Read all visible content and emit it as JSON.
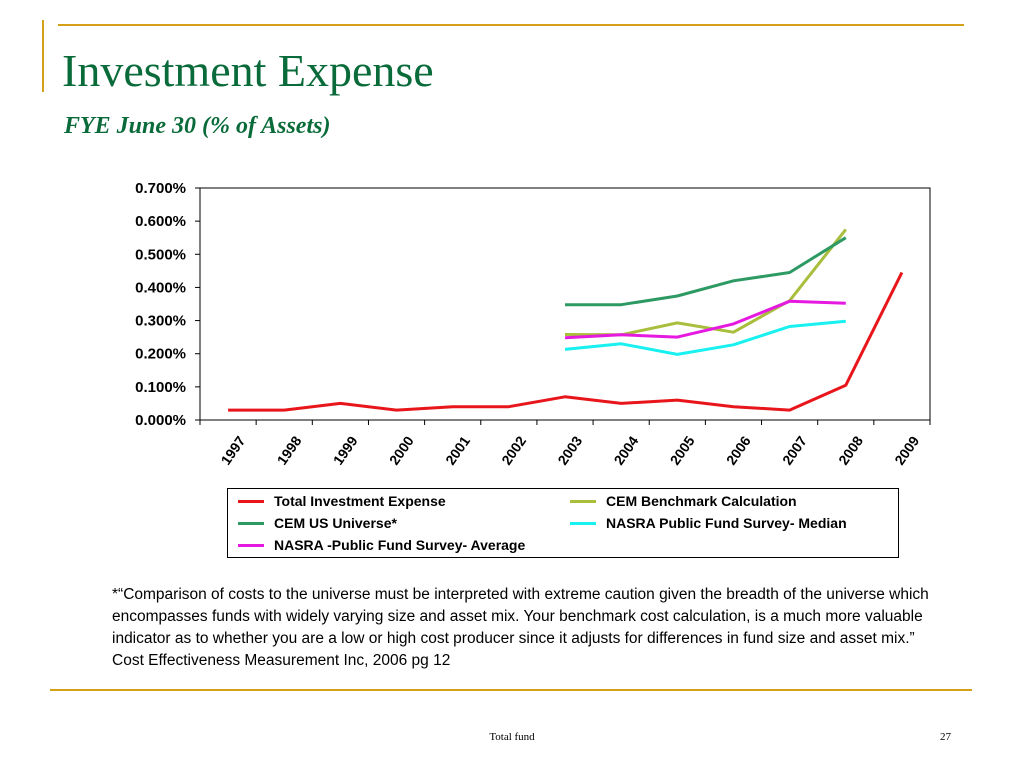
{
  "slide": {
    "title": "Investment Expense",
    "subtitle": "FYE June 30 (% of Assets)",
    "note": "*“Comparison of costs to the universe must be interpreted with extreme caution given the breadth of the universe which encompasses funds with widely varying size and asset mix. Your benchmark cost calculation, is a much more valuable indicator as to whether you are a low or high cost producer since it adjusts for differences in fund size and asset mix.”  Cost Effectiveness Measurement Inc, 2006 pg 12",
    "footer_center": "Total fund",
    "page_number": "27",
    "accent_color": "#d4a017",
    "title_color": "#0a6b3a"
  },
  "chart_data": {
    "type": "line",
    "categories": [
      "1997",
      "1998",
      "1999",
      "2000",
      "2001",
      "2002",
      "2003",
      "2004",
      "2005",
      "2006",
      "2007",
      "2008",
      "2009"
    ],
    "ylim": [
      0,
      0.7
    ],
    "yticks": [
      0.0,
      0.1,
      0.2,
      0.3,
      0.4,
      0.5,
      0.6,
      0.7
    ],
    "ytick_labels": [
      "0.000%",
      "0.100%",
      "0.200%",
      "0.300%",
      "0.400%",
      "0.500%",
      "0.600%",
      "0.700%"
    ],
    "grid": false,
    "legend_position": "bottom",
    "series": [
      {
        "name": "Total Investment Expense",
        "color": "#e8161b",
        "values": [
          0.03,
          0.03,
          0.05,
          0.03,
          0.04,
          0.04,
          0.07,
          0.05,
          0.06,
          0.04,
          0.03,
          0.105,
          0.445
        ]
      },
      {
        "name": "CEM Benchmark Calculation",
        "color": "#a9be3c",
        "values": [
          null,
          null,
          null,
          null,
          null,
          null,
          0.258,
          0.257,
          0.293,
          0.265,
          0.36,
          0.575,
          null
        ]
      },
      {
        "name": "CEM US Universe*",
        "color": "#2e9a63",
        "values": [
          null,
          null,
          null,
          null,
          null,
          null,
          0.348,
          0.348,
          0.374,
          0.42,
          0.445,
          0.55,
          null
        ]
      },
      {
        "name": "NASRA Public Fund Survey- Median",
        "color": "#19f0f0",
        "values": [
          null,
          null,
          null,
          null,
          null,
          null,
          0.213,
          0.23,
          0.198,
          0.227,
          0.282,
          0.298,
          null
        ]
      },
      {
        "name": "NASRA -Public Fund Survey- Average",
        "color": "#e619e0",
        "values": [
          null,
          null,
          null,
          null,
          null,
          null,
          0.248,
          0.257,
          0.25,
          0.29,
          0.358,
          0.352,
          null
        ]
      }
    ]
  }
}
